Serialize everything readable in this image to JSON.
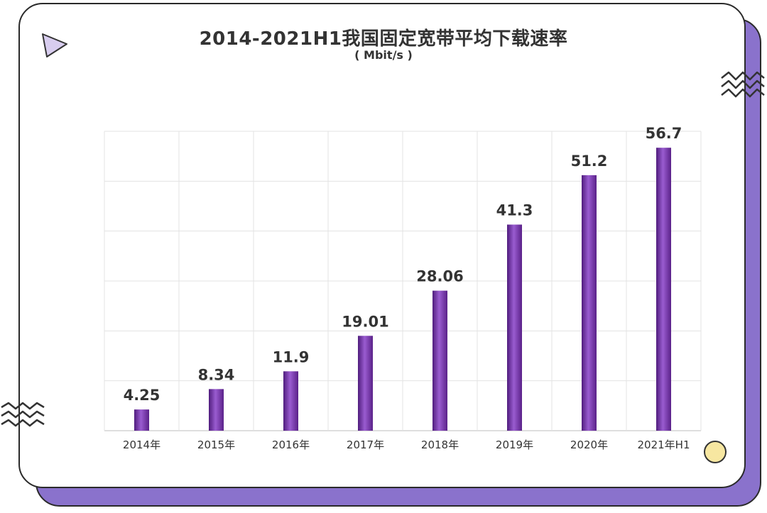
{
  "chart_data": {
    "type": "bar",
    "title": "2014-2021H1我国固定宽带平均下载速率",
    "subtitle": "( Mbit/s )",
    "categories": [
      "2014年",
      "2015年",
      "2016年",
      "2017年",
      "2018年",
      "2019年",
      "2020年",
      "2021年H1"
    ],
    "values": [
      4.25,
      8.34,
      11.9,
      19.01,
      28.06,
      41.3,
      51.2,
      56.7
    ],
    "data_labels": [
      "4.25",
      "8.34",
      "11.9",
      "19.01",
      "28.06",
      "41.3",
      "51.2",
      "56.7"
    ],
    "ylim": [
      0,
      60
    ],
    "grid": true,
    "legend": "none",
    "bar_color": "#6a2a9e",
    "bar_highlight_color": "#9a5cd0"
  },
  "decorations": {
    "triangle_icon": "triangle-icon",
    "zigzag_icon": "zigzag-icon",
    "circle_icon": "circle-icon",
    "card_accent_color": "#8a72cc",
    "triangle_color": "#d8cdef",
    "circle_color": "#f7e7a1"
  }
}
